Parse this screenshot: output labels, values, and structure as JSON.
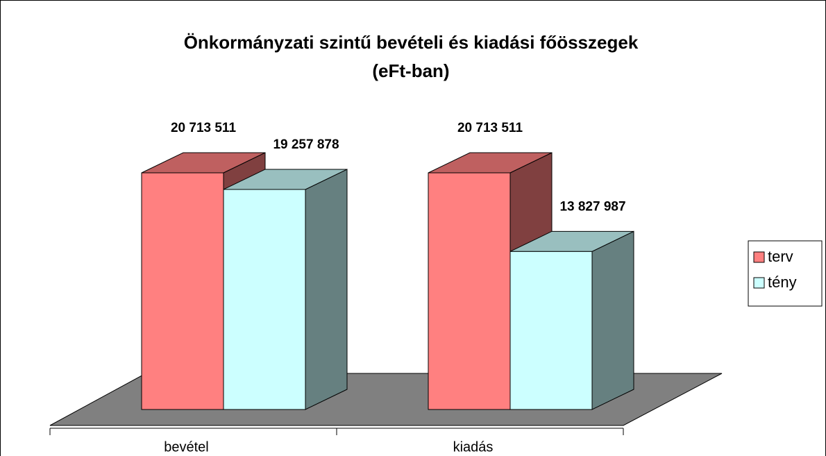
{
  "chart_data": {
    "type": "bar3d",
    "title": [
      "Önkormányzati szintű bevételi és kiadási főösszegek",
      "(eFt-ban)"
    ],
    "categories": [
      "bevétel",
      "kiadás"
    ],
    "series": [
      {
        "name": "terv",
        "color": "#FF8080",
        "values": [
          20713511,
          20713511
        ],
        "value_labels": [
          "20 713 511",
          "20 713 511"
        ]
      },
      {
        "name": "tény",
        "color": "#CCFFFF",
        "values": [
          19257878,
          13827987
        ],
        "value_labels": [
          "19 257 878",
          "13 827 987"
        ]
      }
    ],
    "legend": "right"
  }
}
